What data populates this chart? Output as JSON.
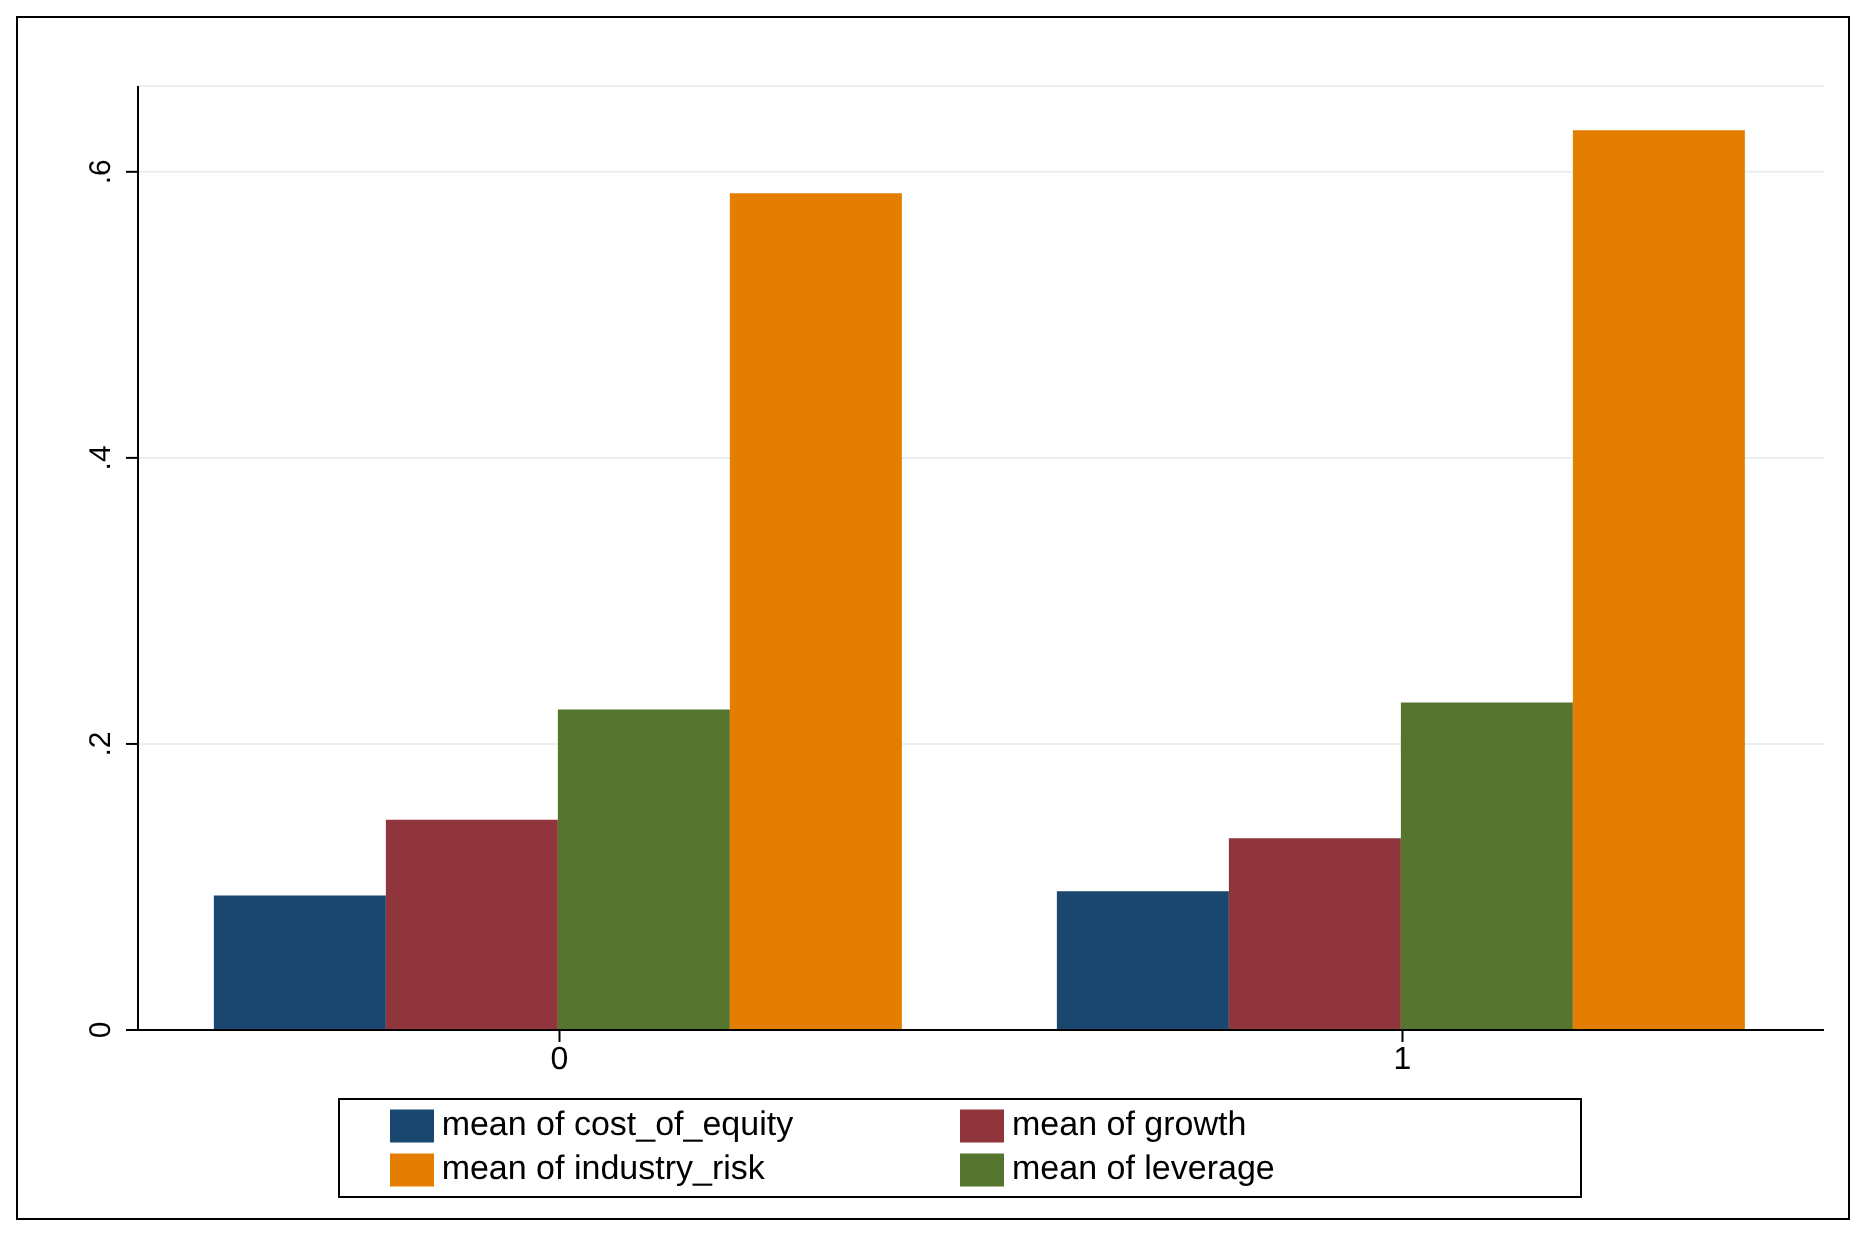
{
  "chart_data": {
    "type": "bar",
    "categories": [
      "0",
      "1"
    ],
    "series": [
      {
        "name": "mean of cost_of_equity",
        "color": "#1a476f",
        "values": [
          0.094,
          0.097
        ]
      },
      {
        "name": "mean of growth",
        "color": "#90353b",
        "values": [
          0.147,
          0.134
        ]
      },
      {
        "name": "mean of leverage",
        "color": "#55752f",
        "values": [
          0.224,
          0.229
        ]
      },
      {
        "name": "mean of industry_risk",
        "color": "#e37e00",
        "values": [
          0.585,
          0.629
        ]
      }
    ],
    "ylim": [
      0,
      0.66
    ],
    "yticks": [
      {
        "value": 0,
        "label": "0"
      },
      {
        "value": 0.2,
        "label": ".2"
      },
      {
        "value": 0.4,
        "label": ".4"
      },
      {
        "value": 0.6,
        "label": ".6"
      }
    ],
    "grid": "y",
    "legend": "bottom"
  }
}
